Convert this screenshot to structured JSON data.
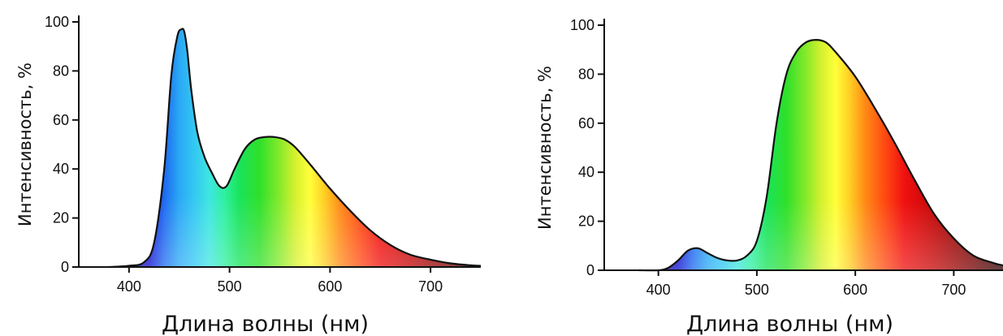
{
  "chart_data": [
    {
      "type": "area",
      "xlabel": "Длина волны (нм)",
      "ylabel": "Интенсивность, %",
      "xlim": [
        350,
        750
      ],
      "ylim": [
        0,
        100
      ],
      "xticks": [
        400,
        500,
        600,
        700
      ],
      "yticks": [
        0,
        20,
        40,
        60,
        80,
        100
      ],
      "grid": false,
      "fill": "visible-spectrum-gradient",
      "series": [
        {
          "x": [
            380,
            400,
            415,
            425,
            435,
            442,
            448,
            452,
            455,
            458,
            462,
            468,
            475,
            483,
            490,
            497,
            505,
            515,
            525,
            535,
            545,
            555,
            565,
            580,
            600,
            620,
            640,
            660,
            680,
            700,
            720,
            740,
            750
          ],
          "values": [
            0,
            0.5,
            2,
            10,
            40,
            78,
            94,
            97,
            96,
            88,
            72,
            55,
            45,
            38,
            33,
            33,
            40,
            48,
            52,
            53,
            53,
            52,
            49,
            42,
            32,
            23,
            15,
            9,
            5,
            3,
            1.5,
            0.7,
            0.5
          ]
        }
      ]
    },
    {
      "type": "area",
      "xlabel": "Длина волны (нм)",
      "ylabel": "Интенсивность, %",
      "xlim": [
        345,
        750
      ],
      "ylim": [
        0,
        100
      ],
      "xticks": [
        400,
        500,
        600,
        700
      ],
      "yticks": [
        0,
        20,
        40,
        60,
        80,
        100
      ],
      "grid": false,
      "fill": "visible-spectrum-gradient",
      "series": [
        {
          "x": [
            380,
            400,
            410,
            420,
            430,
            440,
            450,
            460,
            470,
            480,
            490,
            500,
            510,
            520,
            530,
            540,
            550,
            560,
            570,
            580,
            600,
            620,
            640,
            660,
            680,
            700,
            720,
            740,
            750
          ],
          "values": [
            0,
            0,
            1,
            4,
            8,
            9,
            7,
            5,
            4,
            4,
            6,
            12,
            30,
            60,
            80,
            89,
            93,
            94,
            93,
            89,
            79,
            66,
            52,
            37,
            23,
            13,
            6,
            3,
            2
          ]
        }
      ]
    }
  ]
}
